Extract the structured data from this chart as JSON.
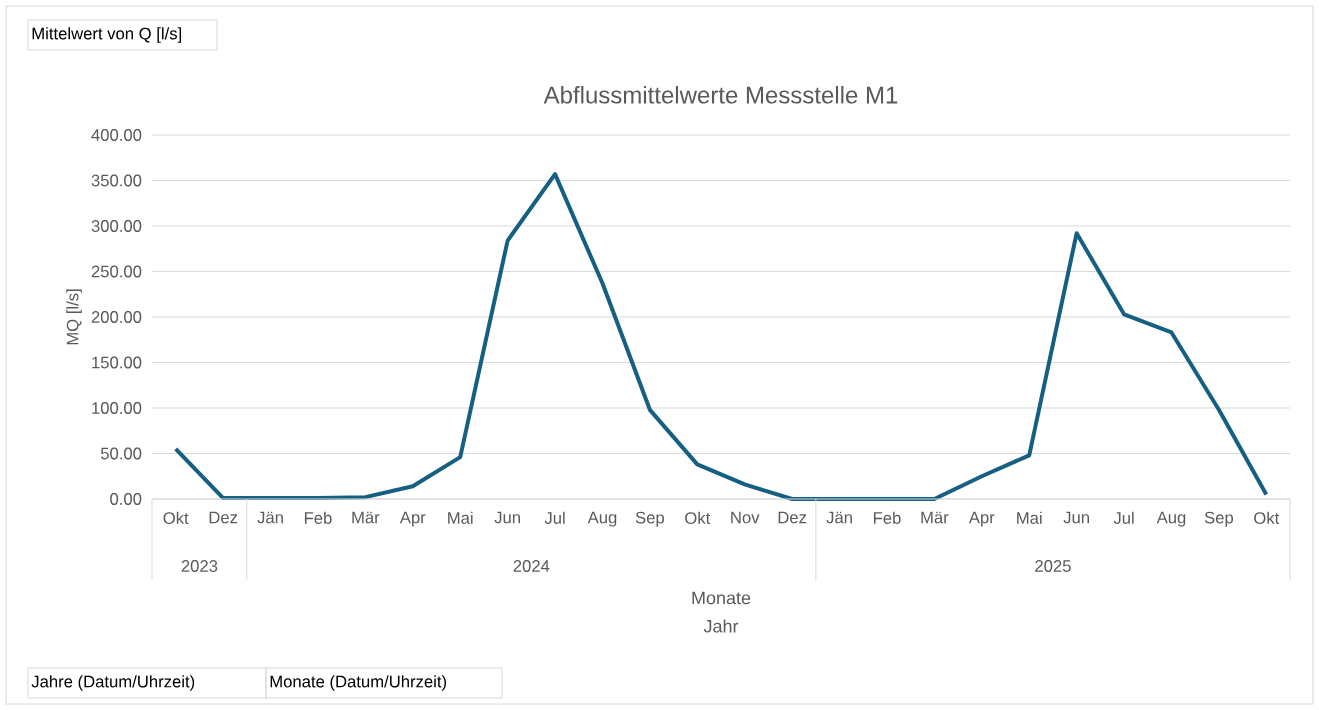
{
  "chart_data": {
    "type": "line",
    "title": "Abflussmittelwerte Messstelle M1",
    "xlabel": "Monate",
    "ylabel": "MQ [l/s]",
    "categories": [
      "Okt",
      "Dez",
      "Jän",
      "Feb",
      "Mär",
      "Apr",
      "Mai",
      "Jun",
      "Jul",
      "Aug",
      "Sep",
      "Okt",
      "Nov",
      "Dez",
      "Jän",
      "Feb",
      "Mär",
      "Apr",
      "Mai",
      "Jun",
      "Jul",
      "Aug",
      "Sep",
      "Okt"
    ],
    "values": [
      55,
      1,
      1,
      1,
      2,
      14,
      46,
      284,
      357,
      237,
      98,
      38,
      16,
      0,
      0,
      0,
      0,
      25,
      48,
      292,
      203,
      183,
      98,
      5
    ],
    "color": "#156082",
    "line_style": "solid",
    "grid": "y",
    "ylim": [
      0,
      400
    ],
    "yticks": [
      {
        "value": 0,
        "label": "0.00"
      },
      {
        "value": 50,
        "label": "50.00"
      },
      {
        "value": 100,
        "label": "100.00"
      },
      {
        "value": 150,
        "label": "150.00"
      },
      {
        "value": 200,
        "label": "200.00"
      },
      {
        "value": 250,
        "label": "250.00"
      },
      {
        "value": 300,
        "label": "300.00"
      },
      {
        "value": 350,
        "label": "350.00"
      },
      {
        "value": 400,
        "label": "400.00"
      }
    ],
    "annotations": [
      "Mittelwert von Q [l/s]",
      "Jahr",
      "Jahre (Datum/Uhrzeit)",
      "Monate (Datum/Uhrzeit)",
      "2023",
      "2024",
      "2025"
    ]
  }
}
